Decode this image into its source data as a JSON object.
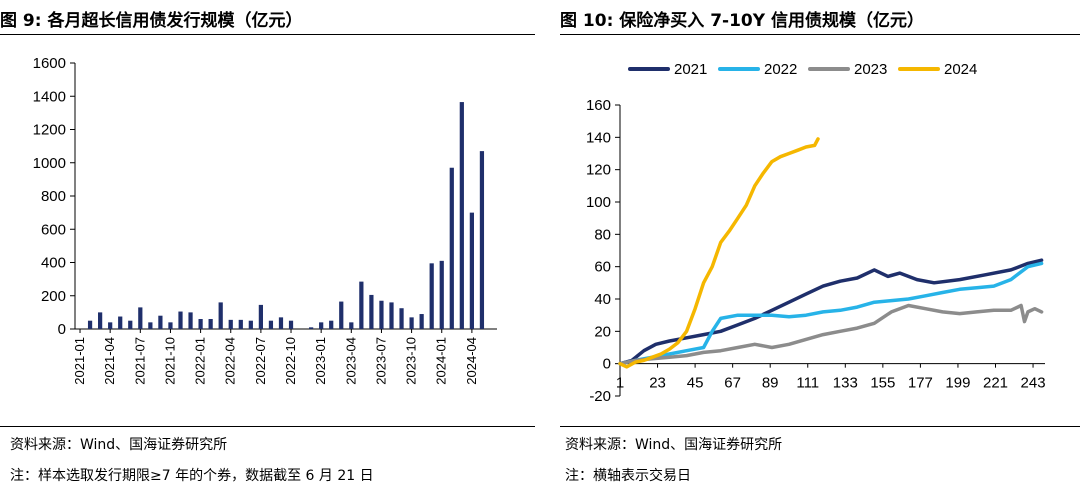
{
  "left": {
    "title": "图 9:  各月超长信用债发行规模（亿元）",
    "source": "资料来源：Wind、国海证券研究所",
    "note": "注：样本选取发行期限≥7 年的个券，数据截至 6 月 21 日"
  },
  "right": {
    "title": "图 10:  保险净买入 7-10Y 信用债规模（亿元）",
    "source": "资料来源：Wind、国海证券研究所",
    "note": "注：横轴表示交易日"
  },
  "chart_data": [
    {
      "type": "bar",
      "ylim": [
        0,
        1600
      ],
      "yticks": [
        0,
        200,
        400,
        600,
        800,
        1000,
        1200,
        1400,
        1600
      ],
      "tick_labels": [
        "2021-01",
        "2021-04",
        "2021-07",
        "2021-10",
        "2022-01",
        "2022-04",
        "2022-07",
        "2022-10",
        "2023-01",
        "2023-04",
        "2023-07",
        "2023-10",
        "2024-01",
        "2024-04"
      ],
      "bar_color": "#1f2f6b",
      "categories": [
        "2021-01",
        "2021-02",
        "2021-03",
        "2021-04",
        "2021-05",
        "2021-06",
        "2021-07",
        "2021-08",
        "2021-09",
        "2021-10",
        "2021-11",
        "2021-12",
        "2022-01",
        "2022-02",
        "2022-03",
        "2022-04",
        "2022-05",
        "2022-06",
        "2022-07",
        "2022-08",
        "2022-09",
        "2022-10",
        "2022-11",
        "2022-12",
        "2023-01",
        "2023-02",
        "2023-03",
        "2023-04",
        "2023-05",
        "2023-06",
        "2023-07",
        "2023-08",
        "2023-09",
        "2023-10",
        "2023-11",
        "2023-12",
        "2024-01",
        "2024-02",
        "2024-03",
        "2024-04",
        "2024-05",
        "2024-06"
      ],
      "values": [
        0,
        50,
        100,
        40,
        75,
        50,
        130,
        40,
        80,
        40,
        105,
        100,
        60,
        60,
        160,
        55,
        55,
        50,
        145,
        50,
        70,
        50,
        0,
        10,
        40,
        50,
        165,
        40,
        285,
        205,
        170,
        160,
        125,
        70,
        90,
        395,
        410,
        970,
        1365,
        700,
        1070,
        0
      ]
    },
    {
      "type": "line",
      "ylim": [
        -20,
        160
      ],
      "yticks": [
        -20,
        0,
        20,
        40,
        60,
        80,
        100,
        120,
        140,
        160
      ],
      "xlim": [
        1,
        250
      ],
      "xticks": [
        1,
        23,
        45,
        67,
        89,
        111,
        133,
        155,
        177,
        199,
        221,
        243
      ],
      "series": [
        {
          "name": "2021",
          "color": "#1f2f6b",
          "x": [
            1,
            8,
            15,
            22,
            30,
            40,
            50,
            60,
            70,
            80,
            90,
            100,
            110,
            120,
            130,
            140,
            150,
            158,
            165,
            175,
            185,
            200,
            215,
            230,
            240,
            248
          ],
          "y": [
            0,
            2,
            8,
            12,
            14,
            16,
            18,
            20,
            24,
            28,
            33,
            38,
            43,
            48,
            51,
            53,
            58,
            54,
            56,
            52,
            50,
            52,
            55,
            58,
            62,
            64
          ]
        },
        {
          "name": "2022",
          "color": "#27b3e8",
          "x": [
            1,
            10,
            20,
            30,
            40,
            50,
            55,
            60,
            70,
            80,
            90,
            100,
            110,
            120,
            130,
            140,
            150,
            160,
            170,
            180,
            190,
            200,
            210,
            220,
            230,
            240,
            248
          ],
          "y": [
            0,
            2,
            4,
            6,
            8,
            10,
            20,
            28,
            30,
            30,
            30,
            29,
            30,
            32,
            33,
            35,
            38,
            39,
            40,
            42,
            44,
            46,
            47,
            48,
            52,
            60,
            62
          ]
        },
        {
          "name": "2023",
          "color": "#8c8c8c",
          "x": [
            1,
            10,
            20,
            30,
            40,
            50,
            60,
            70,
            80,
            90,
            100,
            110,
            120,
            130,
            140,
            150,
            160,
            170,
            180,
            190,
            200,
            210,
            220,
            230,
            236,
            238,
            240,
            244,
            248
          ],
          "y": [
            0,
            2,
            3,
            4,
            5,
            7,
            8,
            10,
            12,
            10,
            12,
            15,
            18,
            20,
            22,
            25,
            32,
            36,
            34,
            32,
            31,
            32,
            33,
            33,
            36,
            26,
            32,
            34,
            32
          ]
        },
        {
          "name": "2024",
          "color": "#f5b700",
          "x": [
            1,
            5,
            10,
            15,
            20,
            25,
            30,
            35,
            40,
            45,
            50,
            55,
            60,
            65,
            70,
            75,
            80,
            85,
            90,
            95,
            100,
            105,
            110,
            115,
            117
          ],
          "y": [
            0,
            -2,
            1,
            2,
            4,
            6,
            9,
            13,
            20,
            34,
            50,
            60,
            75,
            82,
            90,
            98,
            110,
            118,
            125,
            128,
            130,
            132,
            134,
            135,
            139
          ]
        }
      ]
    }
  ]
}
